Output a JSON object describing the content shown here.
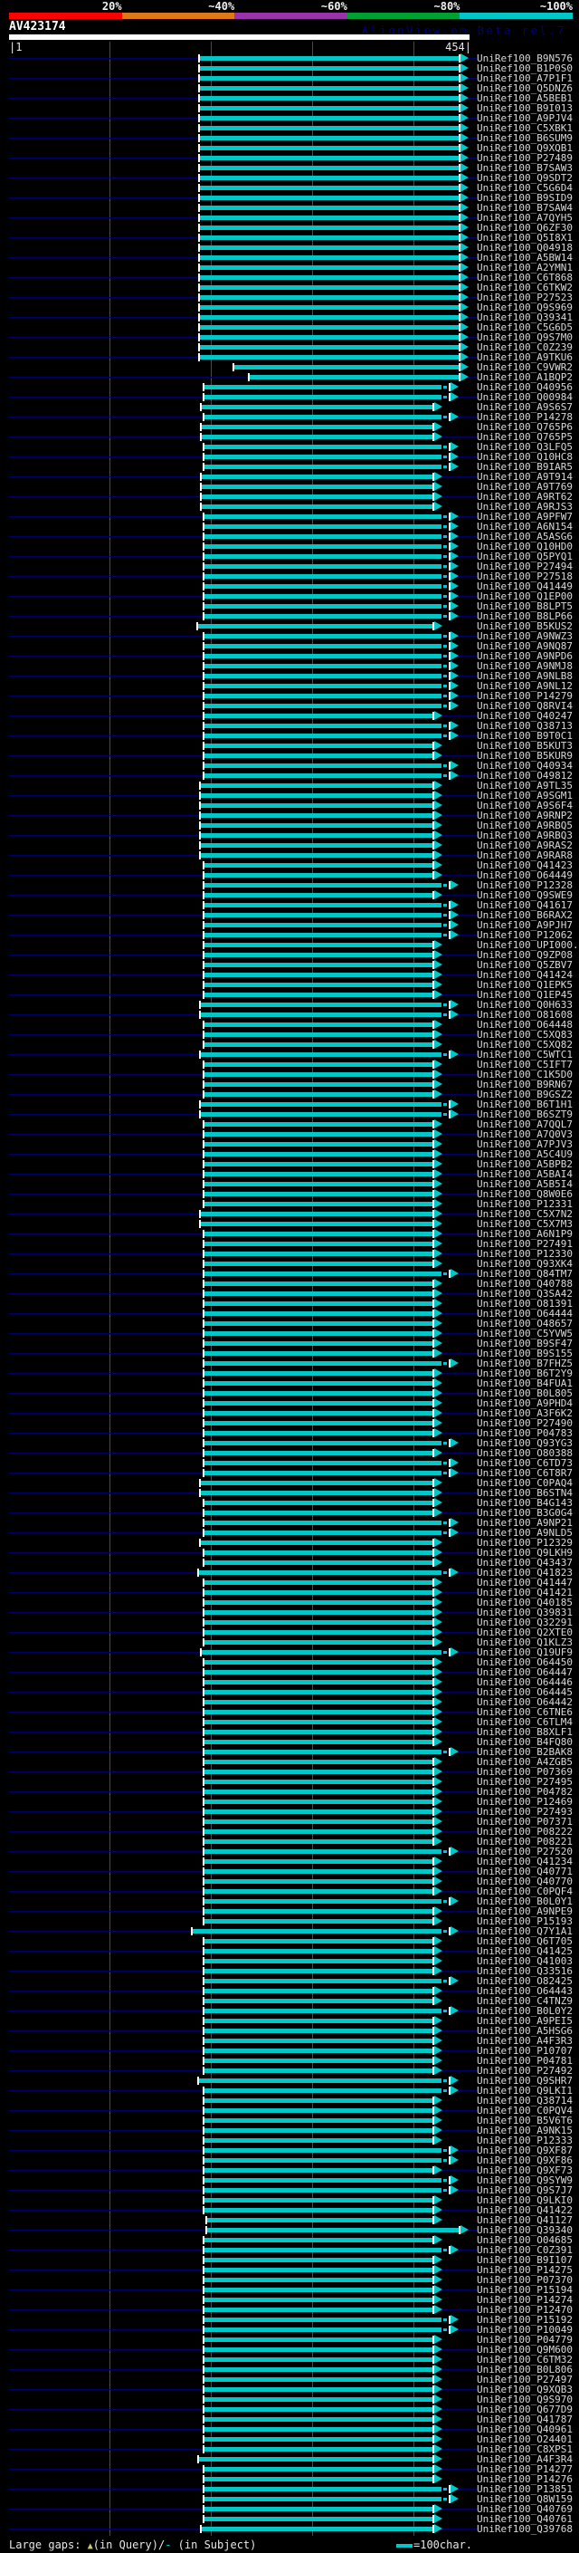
{
  "header": {
    "scale": {
      "segments": [
        {
          "label": "20%",
          "color": "#ff0000"
        },
        {
          "label": "~40%",
          "color": "#e07818"
        },
        {
          "label": "~60%",
          "color": "#9933aa"
        },
        {
          "label": "~80%",
          "color": "#00a032"
        },
        {
          "label": "~100%",
          "color": "#00c8c8"
        }
      ],
      "meaning": "percent identity color scale"
    },
    "query_name": "AV423174",
    "beta_text": "AlignView.pm Beta rel.7",
    "ruler_start": "|1",
    "ruler_end": "454|",
    "query_length": 454
  },
  "legend": {
    "prefix": "Large gaps: ",
    "query_marker": "▲",
    "query_marker_color": "#cccc66",
    "query_text": "(in Query)/",
    "subject_marker": "-",
    "subject_marker_color": "#00c8c8",
    "subject_text": " (in Subject)",
    "scale_label": "=100char."
  },
  "colors": {
    "background": "#000000",
    "hit_bar": "#00c8c8",
    "subject_extent_line": "#000066",
    "gridline": "#50501a",
    "query_bar": "#ffffff",
    "label_text": "#d8d8d8"
  },
  "label_prefix": "UniRef100_",
  "rows_format": [
    "label_suffix",
    "end_type",
    "bar_start_px"
  ],
  "end_types": {
    "f": "full-length bar ending near query residue 443 with arrowhead",
    "s": "shorter bar ending near query residue 418 with arrowhead",
    "d": "bar ending near residue 426 with large-gap dashes before arrowhead"
  },
  "rows": [
    [
      "B9N576",
      "f",
      220
    ],
    [
      "B1P0S0",
      "f",
      220
    ],
    [
      "A7P1F1",
      "f",
      220
    ],
    [
      "Q5DNZ6",
      "f",
      220
    ],
    [
      "A5BEB1",
      "f",
      220
    ],
    [
      "B9I013",
      "f",
      220
    ],
    [
      "A9PJV4",
      "f",
      220
    ],
    [
      "C5XBK1",
      "f",
      220
    ],
    [
      "B6SUM9",
      "f",
      220
    ],
    [
      "Q9XQB1",
      "f",
      220
    ],
    [
      "P27489",
      "f",
      220
    ],
    [
      "B7SAW3",
      "f",
      220
    ],
    [
      "Q9SDT2",
      "f",
      220
    ],
    [
      "C5G6D4",
      "f",
      220
    ],
    [
      "B9SID9",
      "f",
      220
    ],
    [
      "B7SAW4",
      "f",
      220
    ],
    [
      "A7QYH5",
      "f",
      220
    ],
    [
      "Q6ZF30",
      "f",
      220
    ],
    [
      "Q5I8X1",
      "f",
      220
    ],
    [
      "Q04918",
      "f",
      220
    ],
    [
      "A5BW14",
      "f",
      220
    ],
    [
      "A2YMN1",
      "f",
      220
    ],
    [
      "C6T868",
      "f",
      220
    ],
    [
      "C6TKW2",
      "f",
      220
    ],
    [
      "P27523",
      "f",
      220
    ],
    [
      "Q9S969",
      "f",
      220
    ],
    [
      "Q39341",
      "f",
      220
    ],
    [
      "C5G6D5",
      "f",
      220
    ],
    [
      "Q9S7M0",
      "f",
      220
    ],
    [
      "C0Z239",
      "f",
      220
    ],
    [
      "A9TKU6",
      "f",
      220
    ],
    [
      "C9VWR2",
      "f",
      258
    ],
    [
      "A1BQP2",
      "f",
      275
    ],
    [
      "Q40956",
      "d",
      225
    ],
    [
      "Q00984",
      "d",
      225
    ],
    [
      "A9S6S7",
      "s",
      222
    ],
    [
      "P14278",
      "d",
      225
    ],
    [
      "Q765P6",
      "s",
      222
    ],
    [
      "Q765P5",
      "s",
      222
    ],
    [
      "Q3LFQ5",
      "d",
      225
    ],
    [
      "Q10HC8",
      "d",
      225
    ],
    [
      "B9IAR5",
      "d",
      225
    ],
    [
      "A9T914",
      "s",
      222
    ],
    [
      "A9T769",
      "s",
      222
    ],
    [
      "A9RT62",
      "s",
      222
    ],
    [
      "A9RJS3",
      "s",
      222
    ],
    [
      "A9PFW7",
      "d",
      225
    ],
    [
      "A6N154",
      "d",
      225
    ],
    [
      "A5ASG6",
      "d",
      225
    ],
    [
      "Q10HD0",
      "d",
      225
    ],
    [
      "Q5PYQ1",
      "d",
      225
    ],
    [
      "P27494",
      "d",
      225
    ],
    [
      "P27518",
      "d",
      225
    ],
    [
      "Q41449",
      "d",
      225
    ],
    [
      "Q1EP00",
      "d",
      225
    ],
    [
      "B8LPT5",
      "d",
      225
    ],
    [
      "B8LP66",
      "d",
      225
    ],
    [
      "B5KUS2",
      "s",
      218
    ],
    [
      "A9NWZ3",
      "d",
      225
    ],
    [
      "A9NQ87",
      "d",
      225
    ],
    [
      "A9NPD6",
      "d",
      225
    ],
    [
      "A9NMJ8",
      "d",
      225
    ],
    [
      "A9NLB8",
      "d",
      225
    ],
    [
      "A9NL12",
      "d",
      225
    ],
    [
      "P14279",
      "d",
      225
    ],
    [
      "Q8RVI4",
      "d",
      225
    ],
    [
      "Q40247",
      "s",
      225
    ],
    [
      "Q38713",
      "d",
      225
    ],
    [
      "B9T0C1",
      "d",
      225
    ],
    [
      "B5KUT3",
      "s",
      225
    ],
    [
      "B5KUR9",
      "s",
      225
    ],
    [
      "Q40934",
      "d",
      225
    ],
    [
      "O49812",
      "d",
      225
    ],
    [
      "A9TL35",
      "s",
      221
    ],
    [
      "A9SGM1",
      "s",
      221
    ],
    [
      "A9S6F4",
      "s",
      221
    ],
    [
      "A9RNP2",
      "s",
      221
    ],
    [
      "A9RBQ5",
      "s",
      221
    ],
    [
      "A9RBQ3",
      "s",
      221
    ],
    [
      "A9RAS2",
      "s",
      221
    ],
    [
      "A9RAR8",
      "s",
      221
    ],
    [
      "Q41423",
      "s",
      225
    ],
    [
      "O64449",
      "s",
      225
    ],
    [
      "P12328",
      "d",
      225
    ],
    [
      "Q9SWE9",
      "s",
      225
    ],
    [
      "Q41617",
      "d",
      225
    ],
    [
      "B6RAX2",
      "d",
      225
    ],
    [
      "A9PJH7",
      "d",
      225
    ],
    [
      "P12062",
      "d",
      225
    ],
    [
      "UPI000..",
      "s",
      225
    ],
    [
      "Q9ZP08",
      "s",
      225
    ],
    [
      "Q5ZBV7",
      "s",
      225
    ],
    [
      "Q41424",
      "s",
      225
    ],
    [
      "Q1EPK5",
      "s",
      225
    ],
    [
      "Q1EP45",
      "s",
      225
    ],
    [
      "Q0H633",
      "d",
      221
    ],
    [
      "O81608",
      "d",
      221
    ],
    [
      "O64448",
      "s",
      225
    ],
    [
      "C5XQ83",
      "s",
      225
    ],
    [
      "C5XQ82",
      "s",
      225
    ],
    [
      "C5WTC1",
      "d",
      221
    ],
    [
      "C5IFT7",
      "s",
      225
    ],
    [
      "C1K5D0",
      "s",
      225
    ],
    [
      "B9RN67",
      "s",
      225
    ],
    [
      "B9GSZ2",
      "s",
      225
    ],
    [
      "B6T1H1",
      "d",
      221
    ],
    [
      "B6SZT9",
      "d",
      221
    ],
    [
      "A7QQL7",
      "s",
      225
    ],
    [
      "A7Q0V3",
      "s",
      225
    ],
    [
      "A7PJV3",
      "s",
      225
    ],
    [
      "A5C4U9",
      "s",
      225
    ],
    [
      "A5BPB2",
      "s",
      225
    ],
    [
      "A5BAI4",
      "s",
      225
    ],
    [
      "A5B5I4",
      "s",
      225
    ],
    [
      "Q8W0E6",
      "s",
      225
    ],
    [
      "P12331",
      "s",
      225
    ],
    [
      "C5X7N2",
      "s",
      221
    ],
    [
      "C5X7M3",
      "s",
      221
    ],
    [
      "A6N1P9",
      "s",
      225
    ],
    [
      "P27491",
      "s",
      225
    ],
    [
      "P12330",
      "s",
      225
    ],
    [
      "Q93XK4",
      "s",
      225
    ],
    [
      "Q84TM7",
      "d",
      225
    ],
    [
      "Q40788",
      "s",
      225
    ],
    [
      "Q3SA42",
      "s",
      225
    ],
    [
      "O81391",
      "s",
      225
    ],
    [
      "O64444",
      "s",
      225
    ],
    [
      "O48657",
      "s",
      225
    ],
    [
      "C5YVW5",
      "s",
      225
    ],
    [
      "B9SF47",
      "s",
      225
    ],
    [
      "B9S155",
      "s",
      225
    ],
    [
      "B7FHZ5",
      "d",
      225
    ],
    [
      "B6T2Y9",
      "s",
      225
    ],
    [
      "B4FUA1",
      "s",
      225
    ],
    [
      "B0L805",
      "s",
      225
    ],
    [
      "A9PHD4",
      "s",
      225
    ],
    [
      "A3F6K2",
      "s",
      225
    ],
    [
      "P27490",
      "s",
      225
    ],
    [
      "P04783",
      "s",
      225
    ],
    [
      "Q93YG3",
      "d",
      225
    ],
    [
      "O80388",
      "s",
      225
    ],
    [
      "C6TD73",
      "d",
      225
    ],
    [
      "C6T8R7",
      "d",
      225
    ],
    [
      "C0PAQ4",
      "s",
      221
    ],
    [
      "B6STN4",
      "s",
      221
    ],
    [
      "B4G143",
      "s",
      225
    ],
    [
      "B3G0G4",
      "s",
      225
    ],
    [
      "A9NP21",
      "d",
      225
    ],
    [
      "A9NLD5",
      "d",
      225
    ],
    [
      "P12329",
      "s",
      221
    ],
    [
      "Q9LKH9",
      "s",
      225
    ],
    [
      "Q43437",
      "s",
      225
    ],
    [
      "Q41823",
      "d",
      219
    ],
    [
      "Q41447",
      "s",
      225
    ],
    [
      "Q41421",
      "s",
      225
    ],
    [
      "Q40185",
      "s",
      225
    ],
    [
      "Q39831",
      "s",
      225
    ],
    [
      "Q32291",
      "s",
      225
    ],
    [
      "Q2XTE0",
      "s",
      225
    ],
    [
      "Q1KLZ3",
      "s",
      225
    ],
    [
      "Q19UF9",
      "d",
      222
    ],
    [
      "O64450",
      "s",
      225
    ],
    [
      "O64447",
      "s",
      225
    ],
    [
      "O64446",
      "s",
      225
    ],
    [
      "O64445",
      "s",
      225
    ],
    [
      "O64442",
      "s",
      225
    ],
    [
      "C6TNE6",
      "s",
      225
    ],
    [
      "C6TLM4",
      "s",
      225
    ],
    [
      "B8XLF1",
      "s",
      225
    ],
    [
      "B4FQ80",
      "s",
      225
    ],
    [
      "B2BAK8",
      "d",
      225
    ],
    [
      "A4ZGB5",
      "s",
      225
    ],
    [
      "P07369",
      "s",
      225
    ],
    [
      "P27495",
      "s",
      225
    ],
    [
      "P04782",
      "s",
      225
    ],
    [
      "P12469",
      "s",
      225
    ],
    [
      "P27493",
      "s",
      225
    ],
    [
      "P07371",
      "s",
      225
    ],
    [
      "P08222",
      "s",
      225
    ],
    [
      "P08221",
      "s",
      225
    ],
    [
      "P27520",
      "d",
      225
    ],
    [
      "Q41234",
      "s",
      225
    ],
    [
      "Q40771",
      "s",
      225
    ],
    [
      "Q40770",
      "s",
      225
    ],
    [
      "C0PQF4",
      "s",
      225
    ],
    [
      "B0L0Y1",
      "d",
      225
    ],
    [
      "A9NPE9",
      "s",
      225
    ],
    [
      "P15193",
      "s",
      225
    ],
    [
      "Q7Y1A1",
      "d",
      212
    ],
    [
      "Q6T705",
      "s",
      225
    ],
    [
      "Q41425",
      "s",
      225
    ],
    [
      "Q41003",
      "s",
      225
    ],
    [
      "Q33516",
      "s",
      225
    ],
    [
      "O82425",
      "d",
      225
    ],
    [
      "O64443",
      "s",
      225
    ],
    [
      "C4TNZ9",
      "s",
      225
    ],
    [
      "B0L0Y2",
      "d",
      225
    ],
    [
      "A9PEI5",
      "s",
      225
    ],
    [
      "A5HSG6",
      "s",
      225
    ],
    [
      "A4F3R3",
      "s",
      225
    ],
    [
      "P10707",
      "s",
      225
    ],
    [
      "P04781",
      "s",
      225
    ],
    [
      "P27492",
      "s",
      225
    ],
    [
      "Q9SHR7",
      "d",
      219
    ],
    [
      "Q9LKI1",
      "d",
      225
    ],
    [
      "Q38714",
      "s",
      225
    ],
    [
      "C0PQV4",
      "s",
      225
    ],
    [
      "B5V6T6",
      "s",
      225
    ],
    [
      "A9NK15",
      "s",
      225
    ],
    [
      "P12333",
      "s",
      225
    ],
    [
      "Q9XF87",
      "d",
      225
    ],
    [
      "Q9XF86",
      "d",
      225
    ],
    [
      "Q9XF73",
      "s",
      225
    ],
    [
      "Q9SYW9",
      "d",
      225
    ],
    [
      "Q9S7J7",
      "d",
      225
    ],
    [
      "Q9LKI0",
      "s",
      225
    ],
    [
      "Q41422",
      "s",
      225
    ],
    [
      "Q41127",
      "s",
      228
    ],
    [
      "Q39340",
      "f",
      228
    ],
    [
      "O04685",
      "s",
      225
    ],
    [
      "C0Z391",
      "d",
      225
    ],
    [
      "B9I107",
      "s",
      225
    ],
    [
      "P14275",
      "s",
      225
    ],
    [
      "P07370",
      "s",
      225
    ],
    [
      "P15194",
      "s",
      225
    ],
    [
      "P14274",
      "s",
      225
    ],
    [
      "P12470",
      "s",
      225
    ],
    [
      "P15192",
      "d",
      225
    ],
    [
      "P10049",
      "d",
      225
    ],
    [
      "P04779",
      "s",
      225
    ],
    [
      "Q9M600",
      "s",
      225
    ],
    [
      "C6TM32",
      "s",
      225
    ],
    [
      "B0L806",
      "s",
      225
    ],
    [
      "P27497",
      "s",
      225
    ],
    [
      "Q9XQB3",
      "s",
      225
    ],
    [
      "Q9S970",
      "s",
      225
    ],
    [
      "Q677D9",
      "s",
      225
    ],
    [
      "Q41787",
      "s",
      225
    ],
    [
      "Q40961",
      "s",
      225
    ],
    [
      "O24401",
      "s",
      225
    ],
    [
      "C8XPS1",
      "s",
      225
    ],
    [
      "A4F3R4",
      "s",
      219
    ],
    [
      "P14277",
      "s",
      225
    ],
    [
      "P14276",
      "s",
      225
    ],
    [
      "P13851",
      "d",
      225
    ],
    [
      "Q8W159",
      "d",
      225
    ],
    [
      "Q40769",
      "s",
      225
    ],
    [
      "Q40761",
      "s",
      225
    ],
    [
      "Q39768",
      "s",
      222
    ]
  ]
}
